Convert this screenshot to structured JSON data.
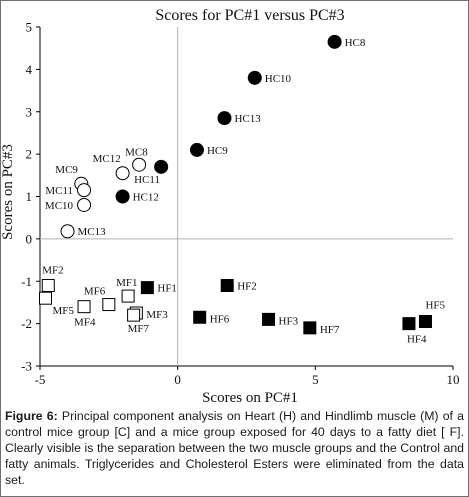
{
  "chart_data": {
    "type": "scatter",
    "title": "Scores for PC#1 versus PC#3",
    "xlabel": "Scores on PC#1",
    "ylabel": "Scores on PC#3",
    "xlim": [
      -5,
      10
    ],
    "ylim": [
      -3,
      5
    ],
    "xticks": [
      -5,
      0,
      5,
      10
    ],
    "xtick_labels": [
      "-5",
      "0",
      "5",
      "10"
    ],
    "yticks": [
      -3,
      -2,
      -1,
      0,
      1,
      2,
      3,
      4,
      5
    ],
    "ytick_labels": [
      "-3",
      "-2",
      "-1",
      "0",
      "1",
      "2",
      "3",
      "4",
      "5"
    ],
    "grid": false,
    "legend": "none",
    "series": [
      {
        "marker": "open-circle",
        "color": "#000000",
        "points": [
          {
            "label": "MC8",
            "x": -1.4,
            "y": 1.75
          },
          {
            "label": "MC12",
            "x": -2.0,
            "y": 1.55
          },
          {
            "label": "MC9",
            "x": -3.5,
            "y": 1.3
          },
          {
            "label": "MC11",
            "x": -3.4,
            "y": 1.15
          },
          {
            "label": "MC10",
            "x": -3.4,
            "y": 0.8
          },
          {
            "label": "MC13",
            "x": -4.0,
            "y": 0.18
          }
        ]
      },
      {
        "marker": "filled-circle",
        "color": "#000000",
        "points": [
          {
            "label": "HC8",
            "x": 5.7,
            "y": 4.65
          },
          {
            "label": "HC10",
            "x": 2.8,
            "y": 3.8
          },
          {
            "label": "HC13",
            "x": 1.7,
            "y": 2.85
          },
          {
            "label": "HC9",
            "x": 0.7,
            "y": 2.1
          },
          {
            "label": "HC11",
            "x": -0.6,
            "y": 1.7
          },
          {
            "label": "HC12",
            "x": -2.0,
            "y": 1.0
          }
        ]
      },
      {
        "marker": "open-square",
        "color": "#000000",
        "points": [
          {
            "label": "MF2",
            "x": -4.7,
            "y": -1.1
          },
          {
            "label": "MF5",
            "x": -4.8,
            "y": -1.4
          },
          {
            "label": "MF6",
            "x": -2.5,
            "y": -1.55
          },
          {
            "label": "MF1",
            "x": -1.8,
            "y": -1.35
          },
          {
            "label": "MF4",
            "x": -3.4,
            "y": -1.6
          },
          {
            "label": "MF3",
            "x": -1.5,
            "y": -1.75
          },
          {
            "label": "MF7",
            "x": -1.6,
            "y": -1.8
          }
        ]
      },
      {
        "marker": "filled-square",
        "color": "#000000",
        "points": [
          {
            "label": "HF1",
            "x": -1.1,
            "y": -1.15
          },
          {
            "label": "HF2",
            "x": 1.8,
            "y": -1.1
          },
          {
            "label": "HF6",
            "x": 0.8,
            "y": -1.85
          },
          {
            "label": "HF3",
            "x": 3.3,
            "y": -1.9
          },
          {
            "label": "HF7",
            "x": 4.8,
            "y": -2.1
          },
          {
            "label": "HF5",
            "x": 9.0,
            "y": -1.95
          },
          {
            "label": "HF4",
            "x": 8.4,
            "y": -2.0
          }
        ]
      }
    ]
  },
  "caption": {
    "label": "Figure 6:",
    "text": " Principal component analysis on Heart (H) and Hindlimb muscle (M) of a control mice group [C] and a mice group exposed for 40 days to a fatty diet [ F]. Clearly visible is the separation between the two muscle groups and the Control and fatty animals. Triglycerides and Cholesterol Esters were eliminated from the data set."
  }
}
